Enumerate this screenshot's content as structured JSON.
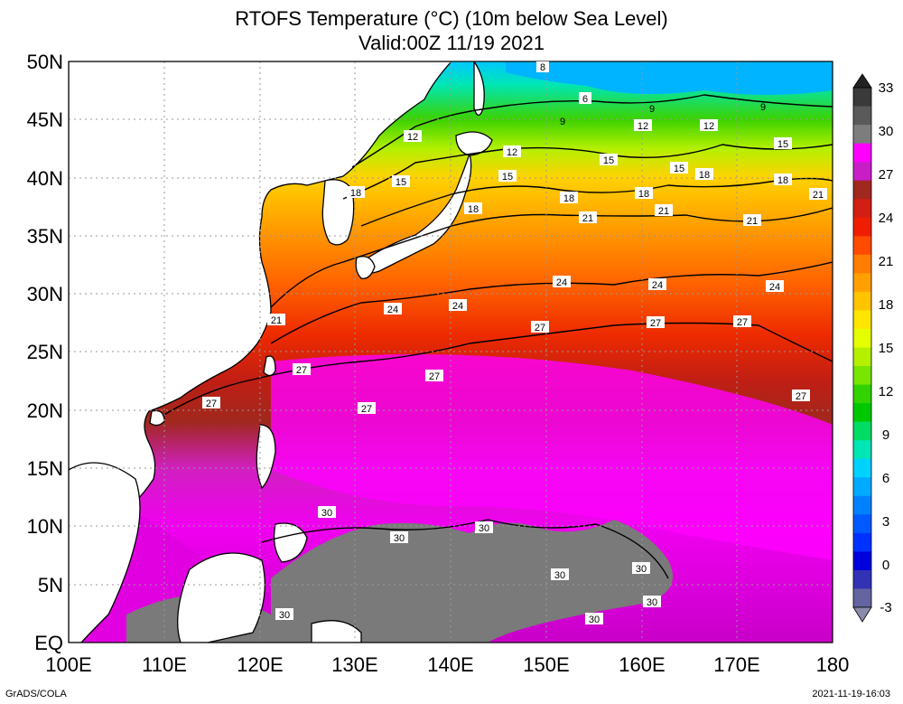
{
  "title_line1": "RTOFS Temperature (°C) (10m below Sea Level)",
  "title_line2": "Valid:00Z 11/19 2021",
  "credit": "GrADS/COLA",
  "timestamp": "2021-11-19-16:03",
  "lat_labels": [
    "50N",
    "45N",
    "40N",
    "35N",
    "30N",
    "25N",
    "20N",
    "15N",
    "10N",
    "5N",
    "EQ"
  ],
  "lon_labels": [
    "100E",
    "110E",
    "120E",
    "130E",
    "140E",
    "150E",
    "160E",
    "170E",
    "180"
  ],
  "colorbar": {
    "tick_labels": [
      "33",
      "30",
      "27",
      "24",
      "21",
      "18",
      "15",
      "12",
      "9",
      "6",
      "3",
      "0",
      "-3"
    ],
    "colors": [
      "#3a3a3a",
      "#5a5a5a",
      "#7d7d7d",
      "#ff00ff",
      "#c81ec8",
      "#a0281e",
      "#d21e14",
      "#f01e00",
      "#ff4b00",
      "#ff7d00",
      "#ffa000",
      "#ffc300",
      "#ffe600",
      "#e6ff00",
      "#b4f000",
      "#78e600",
      "#32d200",
      "#00c800",
      "#00dc64",
      "#00e6b4",
      "#00d2ff",
      "#00aaff",
      "#0082ff",
      "#005aff",
      "#0032ff",
      "#0000dc",
      "#3232b4",
      "#6464a0"
    ]
  },
  "contour_labels": {
    "c12": [
      "12",
      "12",
      "12",
      "12"
    ],
    "c15": [
      "15",
      "15",
      "15",
      "15",
      "15"
    ],
    "c18": [
      "18",
      "18",
      "18",
      "18",
      "18",
      "18"
    ],
    "c21": [
      "21",
      "21",
      "21",
      "21",
      "21"
    ],
    "c24": [
      "24",
      "24",
      "24",
      "24",
      "24"
    ],
    "c27": [
      "27",
      "27",
      "27",
      "27",
      "27",
      "27",
      "27",
      "27"
    ],
    "c30": [
      "30",
      "30",
      "30",
      "30",
      "30",
      "30",
      "30",
      "30"
    ],
    "c9": [
      "9",
      "9",
      "9"
    ],
    "c6": [
      "6",
      "8"
    ]
  }
}
